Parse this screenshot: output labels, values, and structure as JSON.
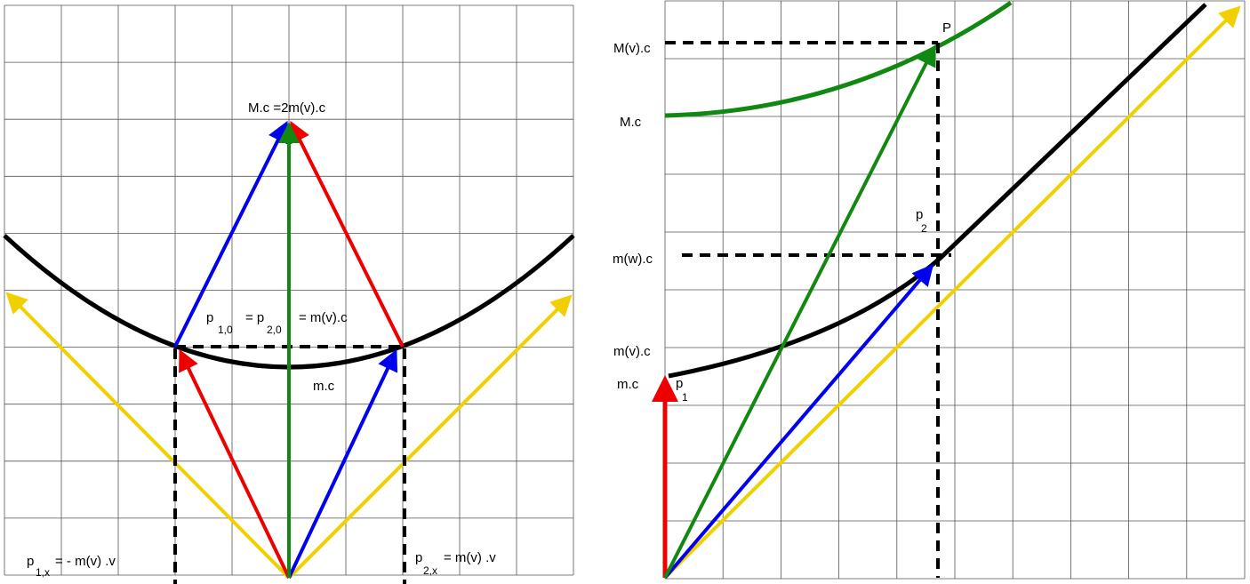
{
  "left": {
    "labels": [
      "M.c =2m(v).c",
      "p",
      "1,0",
      "= p",
      "2,0",
      "= m(v).c",
      "m.c",
      "p",
      "1,x",
      "= - m(v) .v",
      "p",
      "2,x",
      "= m(v) .v"
    ]
  },
  "right": {
    "labels": [
      "P",
      "M(v).c",
      "M.c",
      "p",
      "2",
      "m(w).c",
      "m(v).c",
      "m.c",
      "p",
      "1"
    ]
  }
}
